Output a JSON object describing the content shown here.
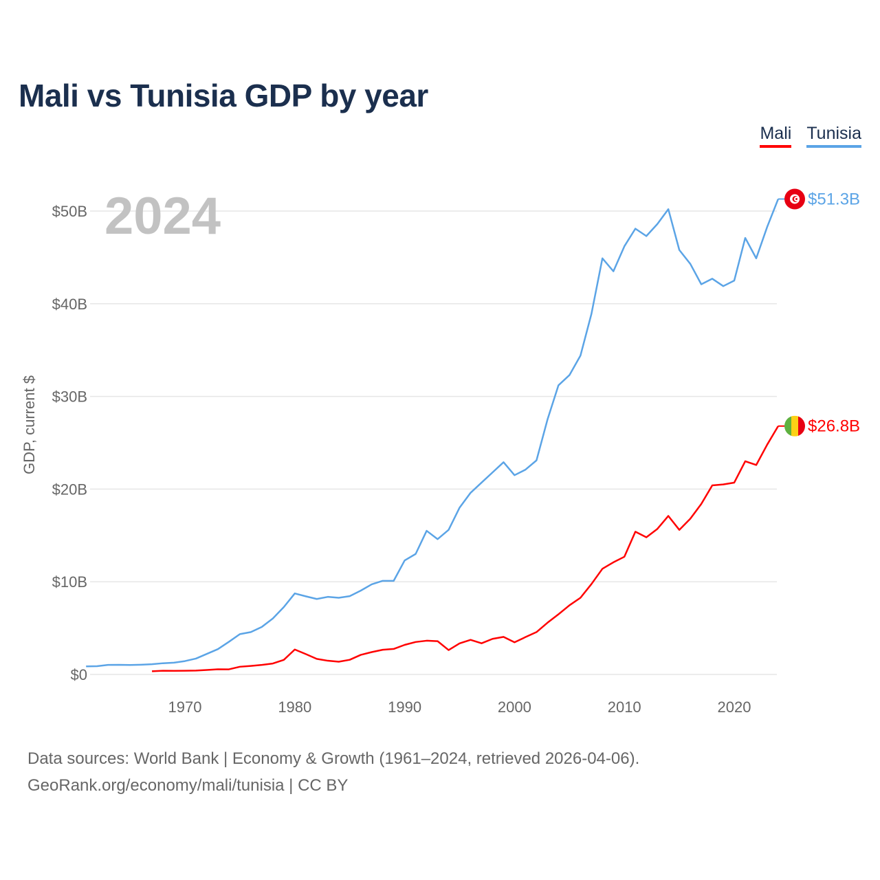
{
  "title": "Mali vs Tunisia GDP by year",
  "legend": [
    {
      "label": "Mali",
      "color": "#ff0000"
    },
    {
      "label": "Tunisia",
      "color": "#5ba4e6"
    }
  ],
  "year_overlay": "2024",
  "footer": {
    "line1": "Data sources: World Bank | Economy & Growth (1961–2024, retrieved 2026-04-06).",
    "line2": "GeoRank.org/economy/mali/tunisia | CC BY"
  },
  "chart_data": {
    "type": "line",
    "title": "Mali vs Tunisia GDP by year",
    "xlabel": "",
    "ylabel": "GDP, current $",
    "xlim": [
      1961,
      2024
    ],
    "ylim": [
      0,
      52
    ],
    "grid": true,
    "legend_position": "top-right",
    "x_ticks": [
      1970,
      1980,
      1990,
      2000,
      2010,
      2020
    ],
    "y_ticks": [
      {
        "value": 0,
        "label": "$0"
      },
      {
        "value": 10,
        "label": "$10B"
      },
      {
        "value": 20,
        "label": "$20B"
      },
      {
        "value": 30,
        "label": "$30B"
      },
      {
        "value": 40,
        "label": "$40B"
      },
      {
        "value": 50,
        "label": "$50B"
      }
    ],
    "series": [
      {
        "name": "Tunisia",
        "color": "#5ba4e6",
        "end_label": "$51.3B",
        "flag": "tunisia-flag",
        "start_year": 1961,
        "values": [
          0.87,
          0.89,
          1.03,
          1.04,
          1.02,
          1.05,
          1.1,
          1.21,
          1.27,
          1.44,
          1.71,
          2.22,
          2.73,
          3.52,
          4.35,
          4.57,
          5.13,
          6.04,
          7.27,
          8.74,
          8.43,
          8.14,
          8.37,
          8.27,
          8.45,
          9.04,
          9.72,
          10.1,
          10.1,
          12.3,
          13.0,
          15.5,
          14.6,
          15.6,
          18.0,
          19.6,
          20.7,
          21.8,
          22.9,
          21.5,
          22.1,
          23.1,
          27.5,
          31.2,
          32.3,
          34.4,
          38.9,
          44.9,
          43.5,
          46.2,
          48.1,
          47.3,
          48.6,
          50.2,
          45.8,
          44.3,
          42.1,
          42.7,
          41.9,
          42.5,
          47.1,
          44.9,
          48.3,
          51.3
        ]
      },
      {
        "name": "Mali",
        "color": "#ff0000",
        "end_label": "$26.8B",
        "flag": "mali-flag",
        "start_year": 1967,
        "values": [
          0.34,
          0.4,
          0.39,
          0.4,
          0.42,
          0.48,
          0.56,
          0.55,
          0.83,
          0.92,
          1.03,
          1.18,
          1.57,
          2.69,
          2.2,
          1.68,
          1.48,
          1.37,
          1.58,
          2.11,
          2.41,
          2.66,
          2.75,
          3.19,
          3.5,
          3.64,
          3.59,
          2.63,
          3.35,
          3.73,
          3.36,
          3.84,
          4.05,
          3.47,
          4.03,
          4.57,
          5.58,
          6.49,
          7.46,
          8.27,
          9.75,
          11.4,
          12.1,
          12.7,
          15.4,
          14.8,
          15.7,
          17.1,
          15.6,
          16.8,
          18.4,
          20.4,
          20.5,
          20.7,
          23.0,
          22.6,
          24.8,
          26.8
        ]
      }
    ]
  }
}
